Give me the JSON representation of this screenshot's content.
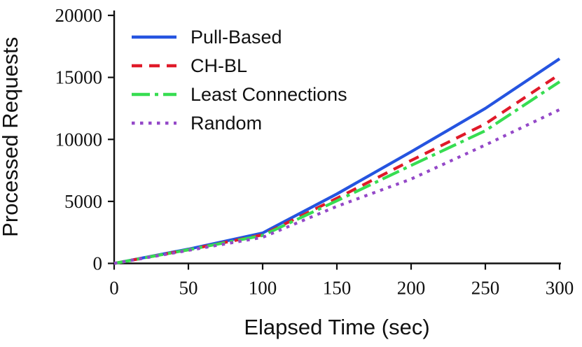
{
  "chart_data": {
    "type": "line",
    "title": "",
    "xlabel": "Elapsed Time (sec)",
    "ylabel": "Processed Requests",
    "xlim": [
      0,
      300
    ],
    "ylim": [
      0,
      20000
    ],
    "x_ticks": [
      0,
      50,
      100,
      150,
      200,
      250,
      300
    ],
    "y_ticks": [
      0,
      5000,
      10000,
      15000,
      20000
    ],
    "grid": false,
    "legend_position": "upper-left",
    "axis_color": "#111111",
    "x": [
      0,
      50,
      100,
      150,
      200,
      250,
      300
    ],
    "series": [
      {
        "name": "Pull-Based",
        "color": "#2554e0",
        "style": "solid",
        "values": [
          0,
          1150,
          2450,
          5600,
          9000,
          12500,
          16500
        ]
      },
      {
        "name": "CH-BL",
        "color": "#e01a29",
        "style": "dashed",
        "values": [
          0,
          1100,
          2300,
          5250,
          8300,
          11250,
          15250
        ]
      },
      {
        "name": "Least Connections",
        "color": "#37dd51",
        "style": "dashdot",
        "values": [
          0,
          1100,
          2250,
          5050,
          7900,
          10700,
          14650
        ]
      },
      {
        "name": "Random",
        "color": "#9448c8",
        "style": "dotted",
        "values": [
          0,
          1050,
          2100,
          4600,
          6800,
          9550,
          12400
        ]
      }
    ]
  }
}
